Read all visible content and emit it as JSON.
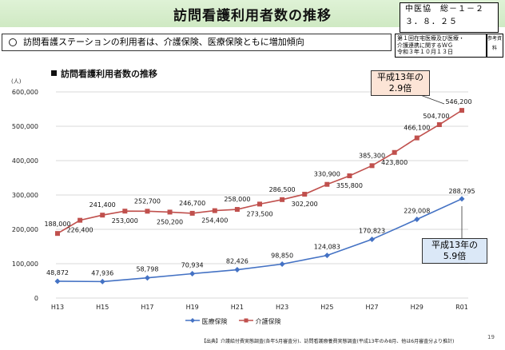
{
  "header": {
    "title": "訪問看護利用者数の推移",
    "ref_line1": "中医協　総－１－２",
    "ref_line2": "３．８．２５",
    "meeting_line1": "第１回在宅医療及び医療・",
    "meeting_line2": "介護連携に関するＷＧ",
    "meeting_line3": "令和３年１０月１３日",
    "ref_material": "参考資料"
  },
  "summary_text": "訪問看護ステーションの利用者は、介護保険、医療保険ともに増加傾向",
  "callouts": {
    "kaigo_ratio": [
      "平成13年の",
      "2.9倍"
    ],
    "iryo_ratio": [
      "平成13年の",
      "5.9倍"
    ]
  },
  "footer": {
    "source": "【出典】介護給付費実態調査(各年5月審査分)、訪問看護療養費実態調査(平成13年のみ8月、他は6月審査分より推計)",
    "page": "19"
  },
  "colors": {
    "iryo": "#4472c4",
    "kaigo": "#c0504d"
  },
  "chart_data": {
    "type": "line",
    "title": "訪問看護利用者数の推移",
    "ylabel": "(人)",
    "ylim": [
      0,
      600000
    ],
    "yticks": [
      "0",
      "100,000",
      "200,000",
      "300,000",
      "400,000",
      "500,000",
      "600,000"
    ],
    "xtick_labels": [
      "H13",
      "H15",
      "H17",
      "H19",
      "H21",
      "H23",
      "H25",
      "H27",
      "H29",
      "R01"
    ],
    "xtick_indices": [
      0,
      2,
      4,
      6,
      8,
      10,
      12,
      14,
      16,
      18
    ],
    "legend_position": "bottom",
    "series": [
      {
        "name": "医療保険",
        "indices": [
          0,
          2,
          4,
          6,
          8,
          10,
          12,
          14,
          16,
          18
        ],
        "values": [
          48872,
          47936,
          58798,
          70934,
          82426,
          98850,
          124083,
          170823,
          229008,
          288795
        ],
        "labels": [
          "48,872",
          "47,936",
          "58,798",
          "70,934",
          "82,426",
          "98,850",
          "124,083",
          "170,823",
          "229,008",
          "288,795"
        ]
      },
      {
        "name": "介護保険",
        "indices": [
          0,
          1,
          2,
          3,
          4,
          5,
          6,
          7,
          8,
          9,
          10,
          11,
          12,
          13,
          14,
          15,
          16,
          17,
          18
        ],
        "values": [
          188000,
          226400,
          241400,
          253000,
          252700,
          250200,
          246700,
          254400,
          258000,
          273500,
          286500,
          302200,
          330900,
          355800,
          385300,
          423800,
          466100,
          504700,
          546200
        ],
        "labels": [
          "188,000",
          "226,400",
          "241,400",
          "253,000",
          "252,700",
          "250,200",
          "246,700",
          "254,400",
          "258,000",
          "273,500",
          "286,500",
          "302,200",
          "330,900",
          "355,800",
          "385,300",
          "423,800",
          "466,100",
          "504,700",
          "546,200"
        ]
      }
    ]
  }
}
